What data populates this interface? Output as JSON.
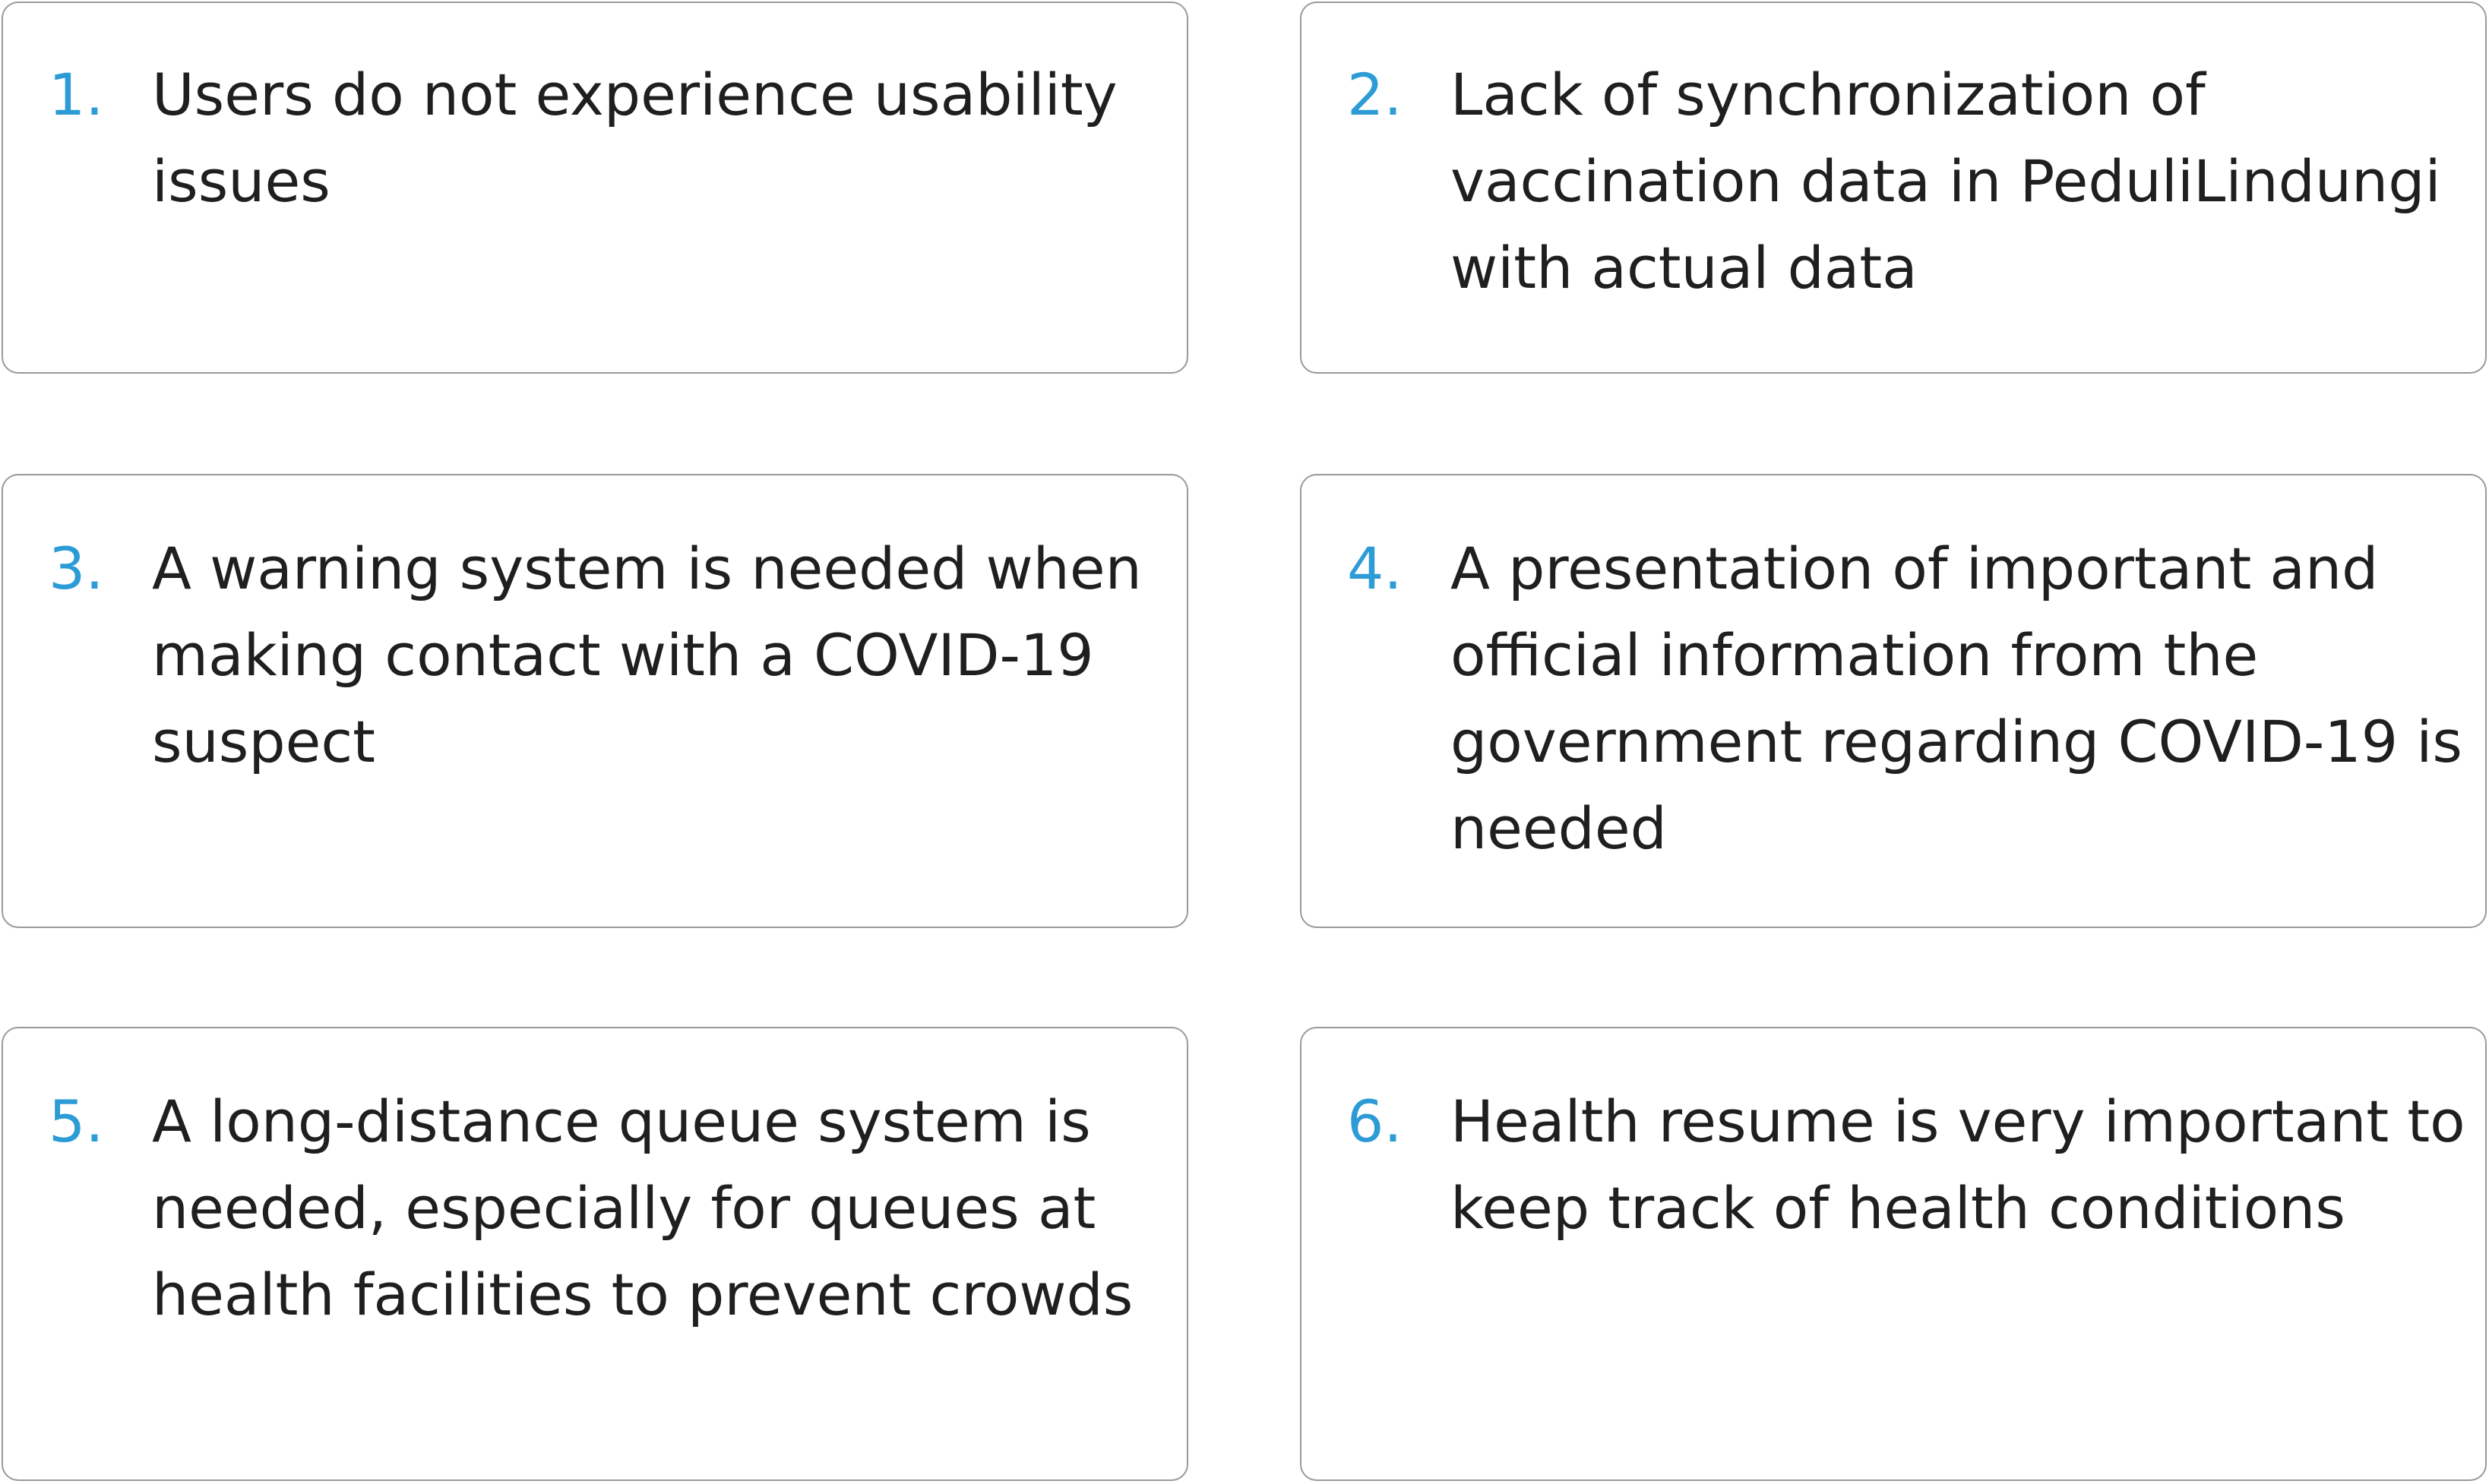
{
  "items": [
    {
      "number": "1.",
      "text": "Users do not experience usability issues"
    },
    {
      "number": "2.",
      "text": "Lack of synchronization of vaccination data in PeduliLindungi with actual data"
    },
    {
      "number": "3.",
      "text": "A warning system is needed when making contact with a COVID-19 suspect"
    },
    {
      "number": "4.",
      "text": "A presentation of important and official information from the government regarding COVID-19 is needed"
    },
    {
      "number": "5.",
      "text": "A long-distance queue system is needed, especially for queues at health facilities to prevent crowds"
    },
    {
      "number": "6.",
      "text": "Health resume is very important to keep track of health conditions"
    }
  ],
  "colors": {
    "accent": "#2d9bd6",
    "text": "#1f1f1f",
    "border": "#9a9a9a"
  }
}
